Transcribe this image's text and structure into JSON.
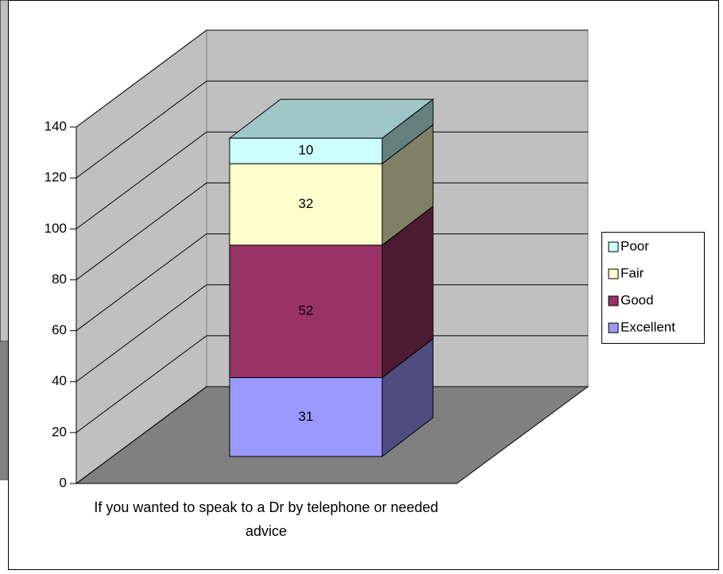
{
  "chart_data": {
    "type": "bar",
    "stacked": true,
    "categories": [
      "If you wanted to speak to a Dr by telephone or needed advice"
    ],
    "series": [
      {
        "name": "Excellent",
        "color": "#9999ff",
        "values": [
          31
        ]
      },
      {
        "name": "Good",
        "color": "#993366",
        "values": [
          52
        ]
      },
      {
        "name": "Fair",
        "color": "#ffffcc",
        "values": [
          32
        ]
      },
      {
        "name": "Poor",
        "color": "#ccffff",
        "values": [
          10
        ]
      }
    ],
    "ylim": [
      0,
      140
    ],
    "yticks": [
      0,
      20,
      40,
      60,
      80,
      100,
      120,
      140
    ],
    "grid": true,
    "legend": "right"
  }
}
